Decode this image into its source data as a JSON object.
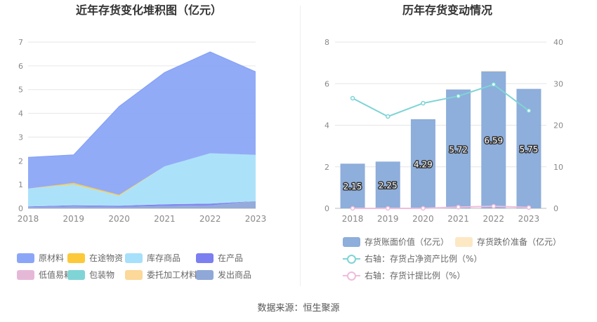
{
  "source": "数据来源：恒生聚源",
  "chart_data": [
    {
      "type": "area",
      "stacked": true,
      "title": "近年存货变化堆积图（亿元）",
      "x": [
        "2018",
        "2019",
        "2020",
        "2021",
        "2022",
        "2023"
      ],
      "ylim": [
        0,
        7
      ],
      "yticks": [
        "0",
        "1",
        "2",
        "3",
        "4",
        "5",
        "6",
        "7"
      ],
      "grid": true,
      "legend_position": "bottom",
      "series": [
        {
          "name": "发出商品",
          "color": "#8fa8d8",
          "values": [
            0.05,
            0.08,
            0.06,
            0.1,
            0.12,
            0.3
          ]
        },
        {
          "name": "委托加工材料",
          "color": "#fcd899",
          "values": [
            0,
            0,
            0,
            0,
            0,
            0
          ]
        },
        {
          "name": "包装物",
          "color": "#7fd4d6",
          "values": [
            0,
            0,
            0,
            0,
            0,
            0
          ]
        },
        {
          "name": "低值易耗品",
          "color": "#e6b8d8",
          "values": [
            0,
            0,
            0,
            0,
            0,
            0
          ]
        },
        {
          "name": "在产品",
          "color": "#7b7ff0",
          "values": [
            0.03,
            0.05,
            0.05,
            0.07,
            0.08,
            0.0
          ]
        },
        {
          "name": "库存商品",
          "color": "#a6e0fa",
          "values": [
            0.75,
            0.88,
            0.42,
            1.6,
            2.12,
            1.95
          ]
        },
        {
          "name": "在途物资",
          "color": "#fcc93a",
          "values": [
            0,
            0.06,
            0.04,
            0,
            0,
            0
          ]
        },
        {
          "name": "原材料",
          "color": "#8ca6f7",
          "values": [
            1.32,
            1.18,
            3.72,
            3.95,
            4.27,
            3.5
          ]
        }
      ],
      "legend": [
        {
          "name": "原材料",
          "color": "#8ca6f7"
        },
        {
          "name": "在途物资",
          "color": "#fcc93a"
        },
        {
          "name": "库存商品",
          "color": "#a6e0fa"
        },
        {
          "name": "在产品",
          "color": "#7b7ff0"
        },
        {
          "name": "低值易耗品",
          "color": "#e6b8d8"
        },
        {
          "name": "包装物",
          "color": "#7fd4d6"
        },
        {
          "name": "委托加工材料",
          "color": "#fcd899"
        },
        {
          "name": "发出商品",
          "color": "#8fa8d8"
        }
      ]
    },
    {
      "type": "bar",
      "title": "历年存货变动情况",
      "categories": [
        "2018",
        "2019",
        "2020",
        "2021",
        "2022",
        "2023"
      ],
      "ylim": [
        0,
        8
      ],
      "yticks": [
        "0",
        "2",
        "4",
        "6",
        "8"
      ],
      "y2lim": [
        0,
        40
      ],
      "y2ticks": [
        "0",
        "10",
        "20",
        "30",
        "40"
      ],
      "grid": true,
      "legend_position": "bottom",
      "bars": [
        {
          "name": "存货账面价值（亿元）",
          "color": "#8eaedb",
          "values": [
            2.15,
            2.25,
            4.29,
            5.72,
            6.59,
            5.75
          ],
          "labels": [
            "2.15",
            "2.25",
            "4.29",
            "5.72",
            "6.59",
            "5.75"
          ]
        },
        {
          "name": "存货跌价准备（亿元）",
          "color": "#fde8c4",
          "values": [
            0,
            0,
            0,
            0,
            0.03,
            0
          ]
        }
      ],
      "lines": [
        {
          "name": "右轴：存货占净资产比例（%）",
          "color": "#7fd4d6",
          "axis": "right",
          "values": [
            26.5,
            22.1,
            25.3,
            27.0,
            29.8,
            23.5
          ]
        },
        {
          "name": "右轴：存货计提比例（%）",
          "color": "#f0bcdc",
          "axis": "right",
          "values": [
            0.0,
            0.0,
            0.0,
            0.3,
            0.5,
            0.2
          ]
        }
      ]
    }
  ]
}
